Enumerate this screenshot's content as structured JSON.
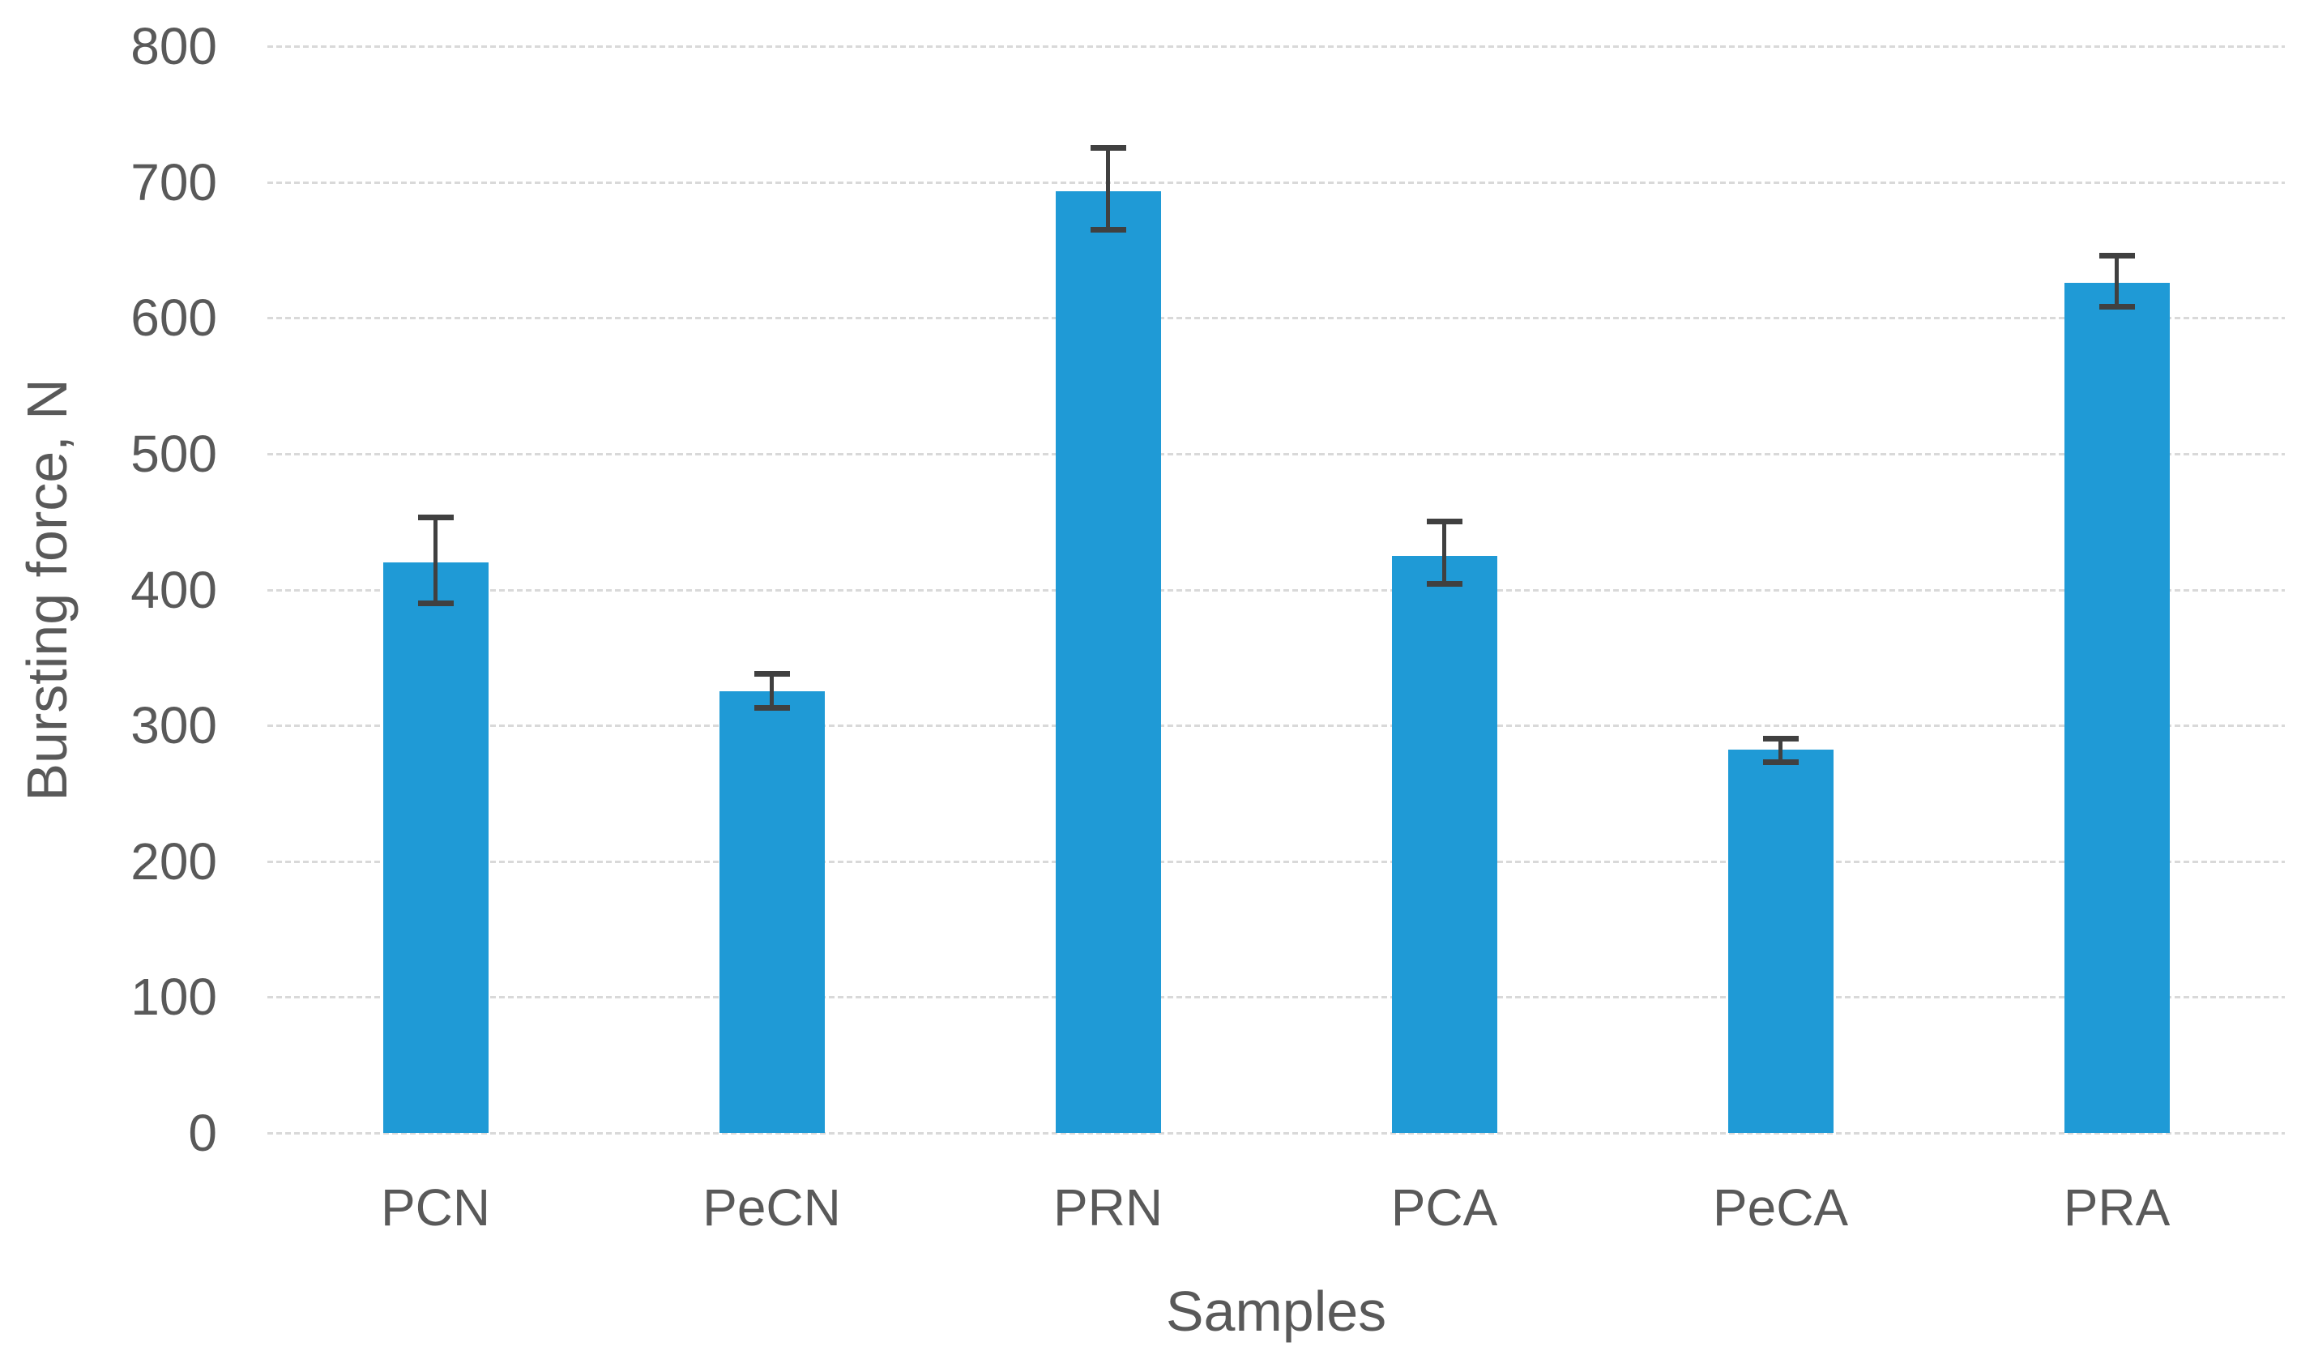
{
  "chart_data": {
    "type": "bar",
    "title": "",
    "xlabel": "Samples",
    "ylabel": "Bursting force, N",
    "categories": [
      "PCN",
      "PeCN",
      "PRN",
      "PCA",
      "PeCA",
      "PRA"
    ],
    "values": [
      420,
      325,
      693,
      425,
      282,
      626
    ],
    "error_high": [
      453,
      338,
      725,
      450,
      290,
      646
    ],
    "error_low": [
      390,
      313,
      665,
      404,
      273,
      608
    ],
    "ylim": [
      0,
      800
    ],
    "yticks": [
      0,
      100,
      200,
      300,
      400,
      500,
      600,
      700,
      800
    ],
    "grid": true,
    "legend": "none",
    "bar_color": "#1f9ad6",
    "error_bar_color": "#404040",
    "axis_text_color": "#595959",
    "gridline_color": "#d9d9d9",
    "background_color": "#ffffff"
  }
}
